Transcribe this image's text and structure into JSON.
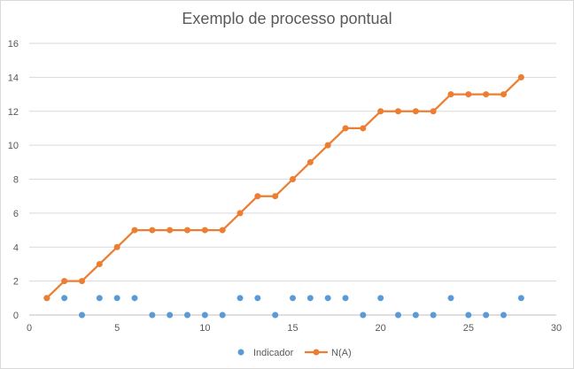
{
  "chart_data": {
    "type": "scatter",
    "title": "Exemplo de processo pontual",
    "xlim": [
      0,
      30
    ],
    "ylim": [
      0,
      16
    ],
    "xticks": [
      0,
      5,
      10,
      15,
      20,
      25,
      30
    ],
    "yticks": [
      0,
      2,
      4,
      6,
      8,
      10,
      12,
      14,
      16
    ],
    "grid": "horizontal",
    "legend_position": "bottom",
    "x": [
      1,
      2,
      3,
      4,
      5,
      6,
      7,
      8,
      9,
      10,
      11,
      12,
      13,
      14,
      15,
      16,
      17,
      18,
      19,
      20,
      21,
      22,
      23,
      24,
      25,
      26,
      27,
      28
    ],
    "series": [
      {
        "name": "Indicador",
        "style": "markers",
        "color": "#5b9bd5",
        "values": [
          1,
          1,
          0,
          1,
          1,
          1,
          0,
          0,
          0,
          0,
          0,
          1,
          1,
          0,
          1,
          1,
          1,
          1,
          0,
          1,
          0,
          0,
          0,
          1,
          0,
          0,
          0,
          1
        ]
      },
      {
        "name": "N(A)",
        "style": "line+markers",
        "color": "#ed7d31",
        "values": [
          1,
          2,
          2,
          3,
          4,
          5,
          5,
          5,
          5,
          5,
          5,
          6,
          7,
          7,
          8,
          9,
          10,
          11,
          11,
          12,
          12,
          12,
          12,
          13,
          13,
          13,
          13,
          14
        ]
      }
    ]
  }
}
